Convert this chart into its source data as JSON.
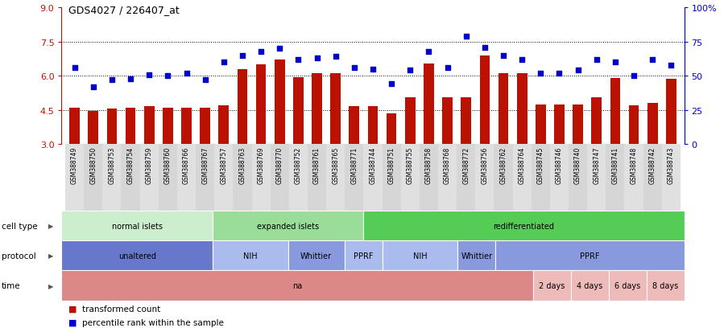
{
  "title": "GDS4027 / 226407_at",
  "samples": [
    "GSM388749",
    "GSM388750",
    "GSM388753",
    "GSM388754",
    "GSM388759",
    "GSM388760",
    "GSM388766",
    "GSM388767",
    "GSM388757",
    "GSM388763",
    "GSM388769",
    "GSM388770",
    "GSM388752",
    "GSM388761",
    "GSM388765",
    "GSM388771",
    "GSM388744",
    "GSM388751",
    "GSM388755",
    "GSM388758",
    "GSM388768",
    "GSM388772",
    "GSM388756",
    "GSM388762",
    "GSM388764",
    "GSM388745",
    "GSM388746",
    "GSM388740",
    "GSM388747",
    "GSM388741",
    "GSM388748",
    "GSM388742",
    "GSM388743"
  ],
  "bar_values": [
    4.6,
    4.45,
    4.55,
    4.6,
    4.65,
    4.6,
    4.6,
    4.6,
    4.7,
    6.3,
    6.5,
    6.7,
    5.95,
    6.1,
    6.1,
    4.65,
    4.65,
    4.35,
    5.05,
    6.55,
    5.05,
    5.05,
    6.9,
    6.1,
    6.1,
    4.75,
    4.75,
    4.75,
    5.05,
    5.9,
    4.7,
    4.8,
    5.85
  ],
  "dot_values": [
    56,
    42,
    47,
    48,
    51,
    50,
    52,
    47,
    60,
    65,
    68,
    70,
    62,
    63,
    64,
    56,
    55,
    44,
    54,
    68,
    56,
    79,
    71,
    65,
    62,
    52,
    52,
    54,
    62,
    60,
    50,
    62,
    58
  ],
  "ylim_left": [
    3,
    9
  ],
  "ylim_right": [
    0,
    100
  ],
  "yticks_left": [
    3,
    4.5,
    6,
    7.5,
    9
  ],
  "yticks_right": [
    0,
    25,
    50,
    75,
    100
  ],
  "ytick_labels_right": [
    "0",
    "25",
    "50",
    "75",
    "100%"
  ],
  "bar_color": "#bb1100",
  "dot_color": "#0000cc",
  "cell_type_groups": [
    {
      "label": "normal islets",
      "start": 0,
      "end": 8,
      "color": "#cceecc"
    },
    {
      "label": "expanded islets",
      "start": 8,
      "end": 16,
      "color": "#99dd99"
    },
    {
      "label": "redifferentiated",
      "start": 16,
      "end": 33,
      "color": "#55cc55"
    }
  ],
  "protocol_groups": [
    {
      "label": "unaltered",
      "start": 0,
      "end": 8,
      "color": "#6677cc"
    },
    {
      "label": "NIH",
      "start": 8,
      "end": 12,
      "color": "#aabbee"
    },
    {
      "label": "Whittier",
      "start": 12,
      "end": 15,
      "color": "#8899dd"
    },
    {
      "label": "PPRF",
      "start": 15,
      "end": 17,
      "color": "#aabbee"
    },
    {
      "label": "NIH",
      "start": 17,
      "end": 21,
      "color": "#aabbee"
    },
    {
      "label": "Whittier",
      "start": 21,
      "end": 23,
      "color": "#8899dd"
    },
    {
      "label": "PPRF",
      "start": 23,
      "end": 33,
      "color": "#8899dd"
    }
  ],
  "time_groups": [
    {
      "label": "na",
      "start": 0,
      "end": 25,
      "color": "#dd8888"
    },
    {
      "label": "2 days",
      "start": 25,
      "end": 27,
      "color": "#eebbbb"
    },
    {
      "label": "4 days",
      "start": 27,
      "end": 29,
      "color": "#eebbbb"
    },
    {
      "label": "6 days",
      "start": 29,
      "end": 31,
      "color": "#eebbbb"
    },
    {
      "label": "8 days",
      "start": 31,
      "end": 33,
      "color": "#eebbbb"
    }
  ],
  "row_labels": [
    "cell type",
    "protocol",
    "time"
  ]
}
